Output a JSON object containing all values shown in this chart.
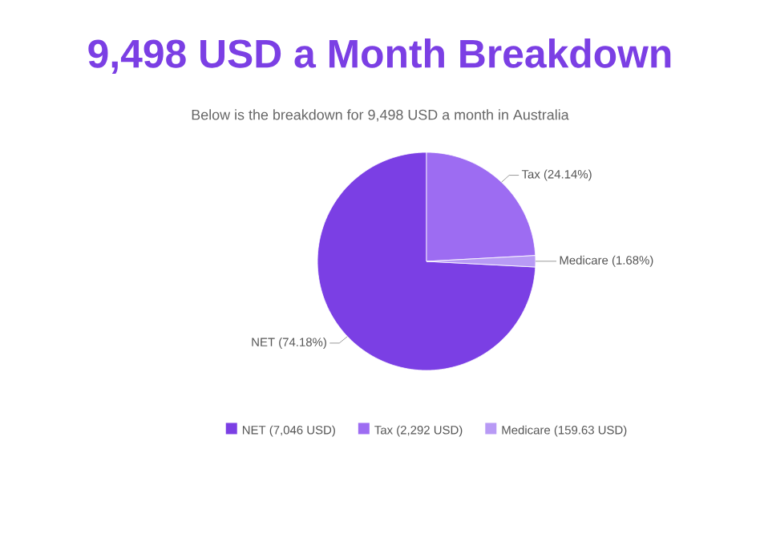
{
  "chart_data": {
    "type": "pie",
    "title": "9,498 USD a Month Breakdown",
    "subtitle": "Below is the breakdown for 9,498 USD a month in Australia",
    "categories": [
      "NET (7,046 USD)",
      "Tax (2,292 USD)",
      "Medicare (159.63 USD)"
    ],
    "values": [
      74.18,
      24.14,
      1.68
    ],
    "value_labels": [
      "NET (74.18%)",
      "Tax (24.14%)",
      "Medicare (1.68%)"
    ],
    "colors": [
      "#7b3fe4",
      "#9d6cf2",
      "#b89af5"
    ],
    "legend": "bottom"
  }
}
